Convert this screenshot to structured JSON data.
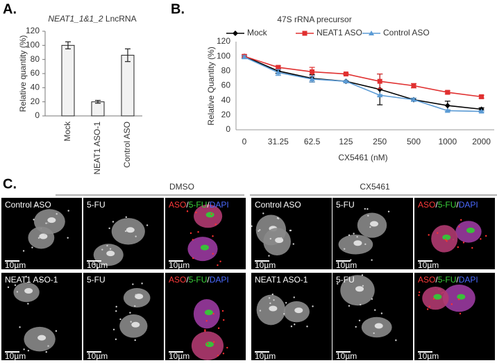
{
  "chart_data": [
    {
      "type": "bar",
      "panel_label": "A.",
      "title": [
        "NEAT1_1&1_2",
        "LncRNA"
      ],
      "ylabel": "Relative quantity (%)",
      "categories": [
        "Mock",
        "NEAT1 ASO-1",
        "Control ASO"
      ],
      "values": [
        100,
        20,
        86
      ],
      "errors": [
        5,
        2,
        9
      ],
      "color": "#f2f2f2",
      "ylim": [
        0,
        120
      ],
      "yticks": [
        0,
        20,
        40,
        60,
        80,
        100,
        120
      ]
    },
    {
      "type": "line",
      "panel_label": "B.",
      "title": "47S rRNA precursor",
      "xlabel": "CX5461 (nM)",
      "ylabel": "Relative Quantity (%)",
      "categories": [
        "0",
        "31.25",
        "62.5",
        "125",
        "250",
        "500",
        "1000",
        "2000"
      ],
      "series": [
        {
          "name": "Mock",
          "color": "#000000",
          "marker": "diamond",
          "values": [
            100,
            80,
            70,
            66,
            55,
            41,
            33,
            28
          ],
          "errors": [
            2,
            3,
            5,
            1,
            21,
            2,
            6,
            2
          ]
        },
        {
          "name": "NEAT1 ASO",
          "color": "#e03030",
          "marker": "square",
          "values": [
            100,
            85,
            79,
            76,
            66,
            60,
            51,
            45
          ],
          "errors": [
            2,
            2,
            6,
            1,
            10,
            3,
            2,
            2
          ]
        },
        {
          "name": "Control ASO",
          "color": "#5b9bd5",
          "marker": "triangle",
          "values": [
            99,
            78,
            69,
            66,
            47,
            41,
            26,
            25
          ],
          "errors": [
            2,
            4,
            4,
            1,
            1,
            2,
            1,
            1
          ]
        }
      ],
      "ylim": [
        0,
        120
      ],
      "yticks": [
        0,
        20,
        40,
        60,
        80,
        100,
        120
      ],
      "legend": "top"
    }
  ],
  "panel_c": {
    "label": "C.",
    "groups": [
      {
        "title": "DMSO",
        "rows": [
          [
            {
              "label": [
                "Control ASO"
              ],
              "scale": "10µm"
            },
            {
              "label": [
                "5-FU"
              ],
              "scale": "10µm"
            },
            {
              "label": [
                "ASO",
                "/",
                "5-FU",
                "/",
                "DAPI"
              ],
              "scale": "10µm"
            }
          ],
          [
            {
              "label": [
                "NEAT1 ASO-1"
              ],
              "scale": "10µm"
            },
            {
              "label": [
                "5-FU"
              ],
              "scale": "10µm"
            },
            {
              "label": [
                "ASO",
                "/",
                "5-FU",
                "/",
                "DAPI"
              ],
              "scale": "10µm"
            }
          ]
        ]
      },
      {
        "title": "CX5461",
        "rows": [
          [
            {
              "label": [
                "Control ASO"
              ],
              "scale": "10µm"
            },
            {
              "label": [
                "5-FU"
              ],
              "scale": "10µm"
            },
            {
              "label": [
                "ASO",
                "/",
                "5-FU",
                "/",
                "DAPI"
              ],
              "scale": "10µm"
            }
          ],
          [
            {
              "label": [
                "NEAT1 ASO-1"
              ],
              "scale": "10µm"
            },
            {
              "label": [
                "5-FU"
              ],
              "scale": "10µm"
            },
            {
              "label": [
                "ASO",
                "/",
                "5-FU",
                "/",
                "DAPI"
              ],
              "scale": "10µm"
            }
          ]
        ]
      }
    ]
  }
}
